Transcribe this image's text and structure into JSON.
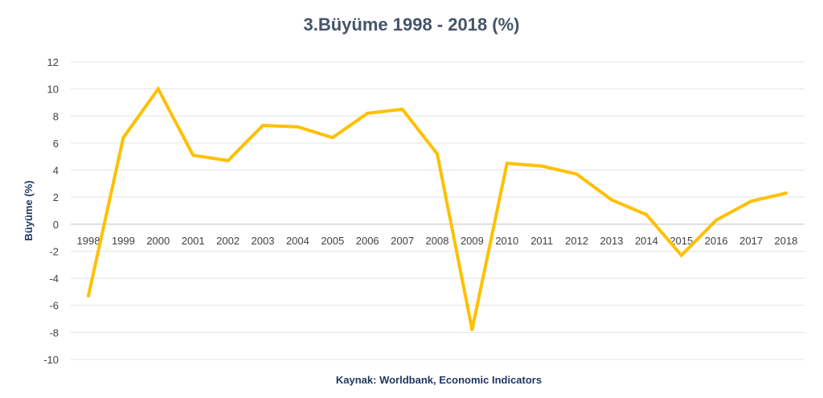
{
  "chart_data": {
    "type": "line",
    "title": "3.Büyüme 1998 - 2018 (%)",
    "xlabel": "",
    "ylabel": "Büyüme (%)",
    "source": "Kaynak: Worldbank, Economic Indicators",
    "ylim": [
      -10,
      12
    ],
    "y_ticks": [
      "12",
      "10",
      "8",
      "6",
      "4",
      "2",
      "0",
      "-2",
      "-4",
      "-6",
      "-8",
      "-10"
    ],
    "grid": true,
    "line_color": "#ffc000",
    "categories": [
      "1998",
      "1999",
      "2000",
      "2001",
      "2002",
      "2003",
      "2004",
      "2005",
      "2006",
      "2007",
      "2008",
      "2009",
      "2010",
      "2011",
      "2012",
      "2013",
      "2014",
      "2015",
      "2016",
      "2017",
      "2018"
    ],
    "values": [
      -5.3,
      6.4,
      10.0,
      5.1,
      4.7,
      7.3,
      7.2,
      6.4,
      8.2,
      8.5,
      5.2,
      -7.8,
      4.5,
      4.3,
      3.7,
      1.8,
      0.7,
      -2.3,
      0.3,
      1.7,
      2.3
    ]
  }
}
